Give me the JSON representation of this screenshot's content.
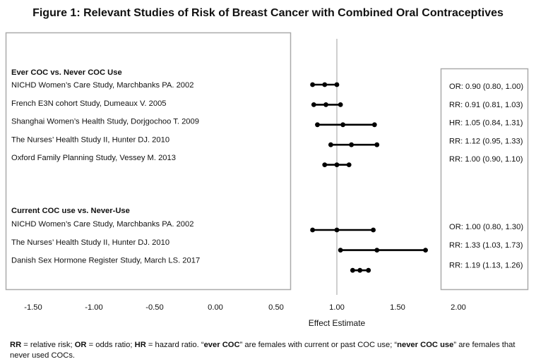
{
  "chart_data": {
    "type": "forest",
    "title": "Figure 1:  Relevant Studies of Risk of Breast Cancer with Combined Oral Contraceptives",
    "xlabel": "Effect Estimate",
    "xlim": [
      -1.5,
      2.0
    ],
    "xticks": [
      "-1.50",
      "-1.00",
      "-0.50",
      "0.00",
      "0.50",
      "1.00",
      "1.50",
      "2.00"
    ],
    "tick_values": [
      -1.5,
      -1.0,
      -0.5,
      0.0,
      0.5,
      1.0,
      1.5,
      2.0
    ],
    "reference_line": 1.0,
    "groups": [
      {
        "heading": "Ever COC vs. Never COC Use",
        "studies": [
          {
            "label": "NICHD  Women’s Care Study, Marchbanks PA. 2002",
            "measure": "OR",
            "estimate": 0.9,
            "low": 0.8,
            "high": 1.0,
            "text": "OR: 0.90 (0.80, 1.00)"
          },
          {
            "label": "French E3N cohort Study, Dumeaux V. 2005",
            "measure": "RR",
            "estimate": 0.91,
            "low": 0.81,
            "high": 1.03,
            "text": "RR: 0.91 (0.81, 1.03)"
          },
          {
            "label": "Shanghai Women’s Health Study, Dorjgochoo T. 2009",
            "measure": "HR",
            "estimate": 1.05,
            "low": 0.84,
            "high": 1.31,
            "text": "HR: 1.05 (0.84, 1.31)"
          },
          {
            "label": "The Nurses’ Health Study II, Hunter DJ. 2010",
            "measure": "RR",
            "estimate": 1.12,
            "low": 0.95,
            "high": 1.33,
            "text": "RR: 1.12 (0.95, 1.33)"
          },
          {
            "label": "Oxford Family Planning Study, Vessey M. 2013",
            "measure": "RR",
            "estimate": 1.0,
            "low": 0.9,
            "high": 1.1,
            "text": "RR: 1.00 (0.90, 1.10)"
          }
        ]
      },
      {
        "heading": "Current COC use vs. Never-Use",
        "studies": [
          {
            "label": "NICHD Women’s Care Study, Marchbanks PA. 2002",
            "measure": "OR",
            "estimate": 1.0,
            "low": 0.8,
            "high": 1.3,
            "text": "OR: 1.00 (0.80, 1.30)"
          },
          {
            "label": "The Nurses’ Health Study II, Hunter DJ. 2010",
            "measure": "RR",
            "estimate": 1.33,
            "low": 1.03,
            "high": 1.73,
            "text": "RR: 1.33 (1.03, 1.73)"
          },
          {
            "label": "Danish Sex  Hormone  Register Study,  March LS. 2017",
            "measure": "RR",
            "estimate": 1.19,
            "low": 1.13,
            "high": 1.26,
            "text": "RR: 1.19 (1.13, 1.26)"
          }
        ]
      }
    ]
  },
  "footnote": {
    "rr_abbr": "RR",
    "rr_def": " = relative risk; ",
    "or_abbr": "OR",
    "or_def": " = odds ratio; ",
    "hr_abbr": "HR",
    "hr_def": " = hazard ratio. “",
    "ever_term": "ever COC",
    "ever_def": "” are females with current or past COC use; “",
    "never_term": "never COC use",
    "never_def": "” are females that never used COCs."
  },
  "colors": {
    "frame": "#aaaaaa",
    "reference_line": "#bfbfbf",
    "marker": "#000000"
  }
}
